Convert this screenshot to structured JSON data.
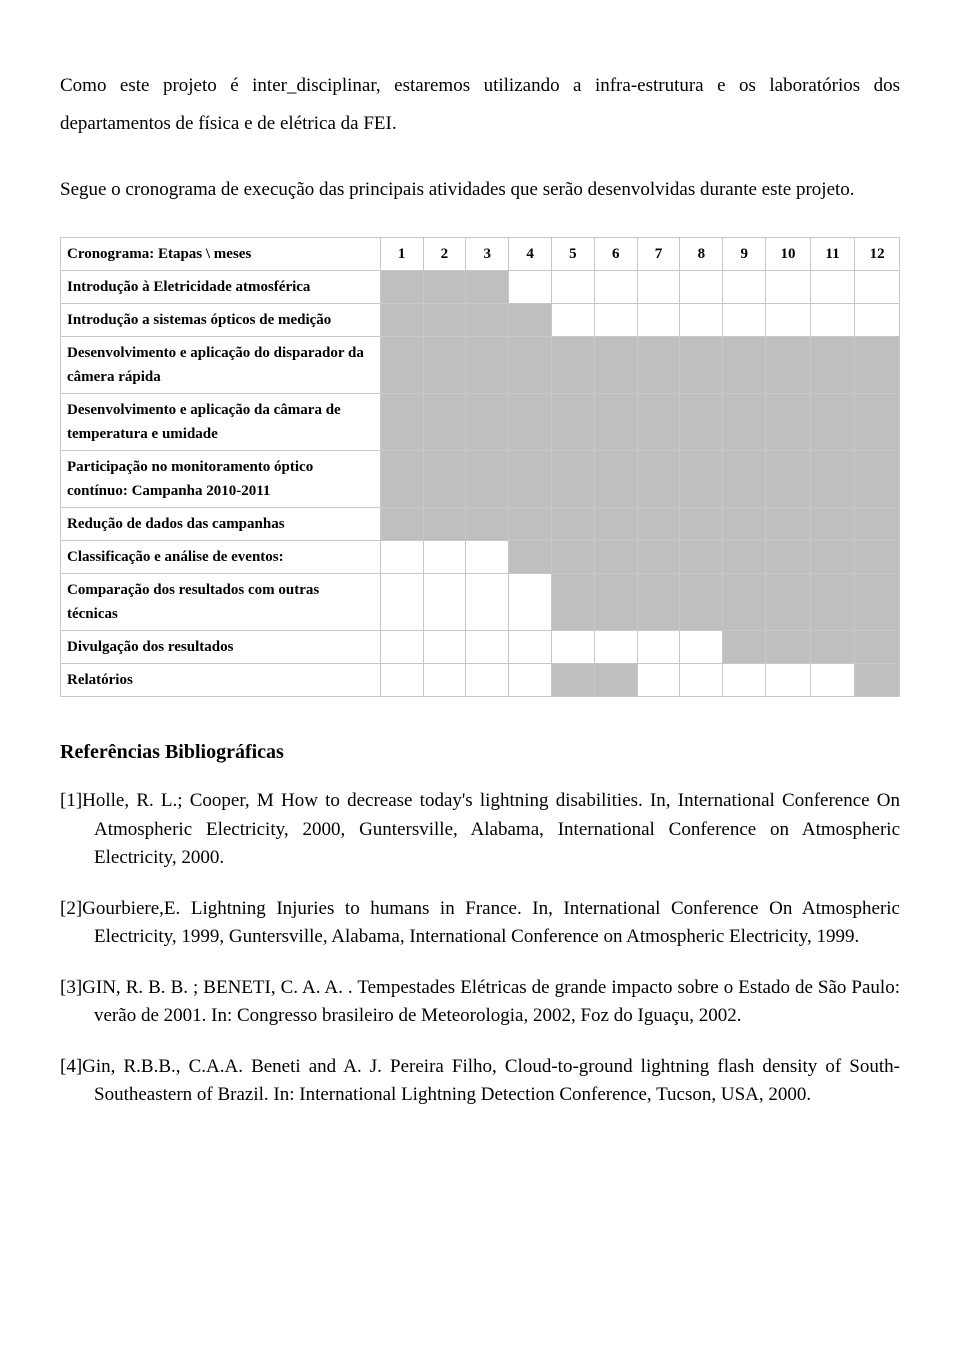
{
  "paragraphs": {
    "p1": "Como este projeto é inter_disciplinar, estaremos utilizando a infra-estrutura e os laboratórios dos departamentos de física e de elétrica da FEI.",
    "p2": "Segue o cronograma de execução das principais atividades que serão desenvolvidas durante este projeto."
  },
  "cronograma": {
    "header_label": "Cronograma: Etapas \\ meses",
    "months": [
      "1",
      "2",
      "3",
      "4",
      "5",
      "6",
      "7",
      "8",
      "9",
      "10",
      "11",
      "12"
    ],
    "rows": [
      {
        "label": "Introdução à Eletricidade atmosférica",
        "fill": [
          1,
          1,
          1,
          0,
          0,
          0,
          0,
          0,
          0,
          0,
          0,
          0
        ]
      },
      {
        "label": "Introdução a sistemas ópticos de medição",
        "fill": [
          1,
          1,
          1,
          1,
          0,
          0,
          0,
          0,
          0,
          0,
          0,
          0
        ]
      },
      {
        "label": "Desenvolvimento e aplicação do disparador da câmera rápida",
        "fill": [
          1,
          1,
          1,
          1,
          1,
          1,
          1,
          1,
          1,
          1,
          1,
          1
        ]
      },
      {
        "label": "Desenvolvimento e aplicação da câmara de temperatura e umidade",
        "fill": [
          1,
          1,
          1,
          1,
          1,
          1,
          1,
          1,
          1,
          1,
          1,
          1
        ]
      },
      {
        "label": "Participação no monitoramento óptico contínuo: Campanha 2010-2011",
        "fill": [
          1,
          1,
          1,
          1,
          1,
          1,
          1,
          1,
          1,
          1,
          1,
          1
        ]
      },
      {
        "label": "Redução de dados das campanhas",
        "fill": [
          1,
          1,
          1,
          1,
          1,
          1,
          1,
          1,
          1,
          1,
          1,
          1
        ]
      },
      {
        "label": "Classificação e análise de eventos:",
        "fill": [
          0,
          0,
          0,
          1,
          1,
          1,
          1,
          1,
          1,
          1,
          1,
          1
        ]
      },
      {
        "label": "Comparação dos resultados com outras técnicas",
        "fill": [
          0,
          0,
          0,
          0,
          1,
          1,
          1,
          1,
          1,
          1,
          1,
          1
        ]
      },
      {
        "label": "Divulgação dos resultados",
        "fill": [
          0,
          0,
          0,
          0,
          0,
          0,
          0,
          0,
          1,
          1,
          1,
          1
        ]
      },
      {
        "label": "Relatórios",
        "fill": [
          0,
          0,
          0,
          0,
          1,
          1,
          0,
          0,
          0,
          0,
          0,
          1
        ]
      }
    ],
    "fill_color": "#bfbfbf",
    "border_color": "#c8c8c8",
    "font_size": 15
  },
  "references": {
    "heading": "Referências Bibliográficas",
    "items": [
      "[1]Holle, R. L.; Cooper, M   How to decrease today's lightning disabilities.   In, International Conference On Atmospheric Electricity, 2000, Guntersville, Alabama, International Conference on Atmospheric Electricity, 2000.",
      "[2]Gourbiere,E.  Lightning Injuries to humans in France.  In,  International Conference On Atmospheric Electricity, 1999, Guntersville, Alabama, International Conference on Atmospheric Electricity, 1999.",
      "[3]GIN, R. B. B. ; BENETI, C. A. A. . Tempestades Elétricas de grande impacto sobre o Estado de São Paulo: verão de 2001. In: Congresso brasileiro de Meteorologia, 2002, Foz do Iguaçu, 2002.",
      "[4]Gin, R.B.B., C.A.A. Beneti and A. J. Pereira Filho, Cloud-to-ground lightning flash density of South-Southeastern of Brazil. In: International Lightning Detection Conference, Tucson, USA, 2000."
    ]
  }
}
